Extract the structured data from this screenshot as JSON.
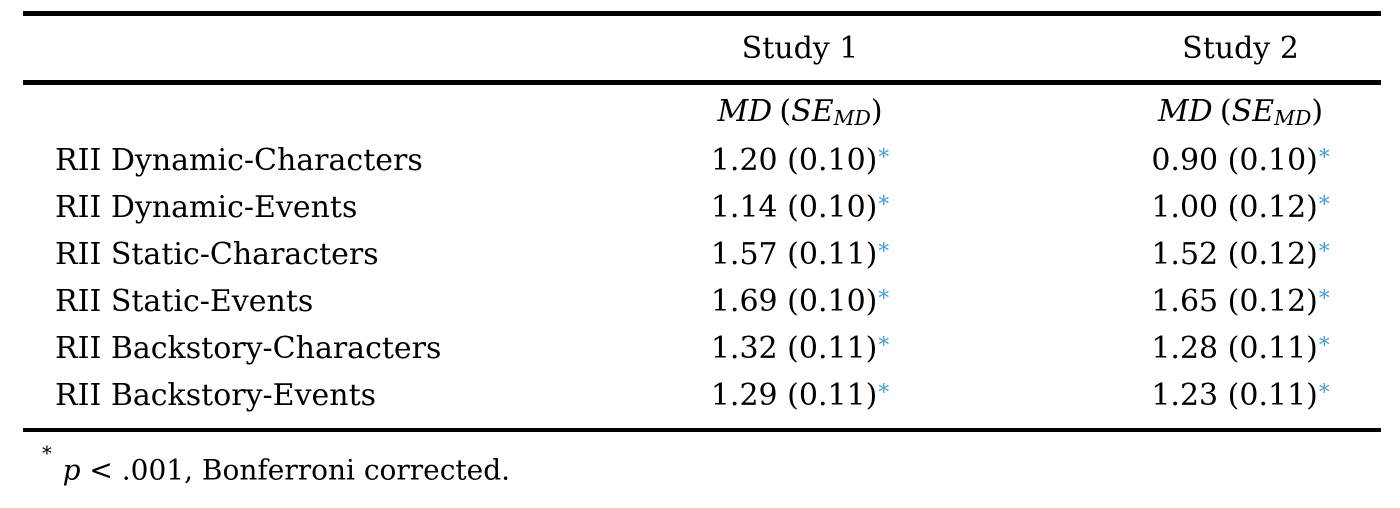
{
  "colors": {
    "background": "#ffffff",
    "text": "#000000",
    "rule": "#000000",
    "sig_asterisk_blue": "#3f9bdc"
  },
  "table": {
    "column_groups": [
      {
        "label": "Study 1"
      },
      {
        "label": "Study 2"
      }
    ],
    "stat_header": {
      "md": "MD",
      "open_paren": "(",
      "se": "SE",
      "se_sub": "MD",
      "close_paren": ")"
    },
    "rows": [
      {
        "label": "RII Dynamic-Characters",
        "study1": "1.20 (0.10)",
        "study1_sig": "*",
        "study2": "0.90 (0.10)",
        "study2_sig": "*"
      },
      {
        "label": "RII Dynamic-Events",
        "study1": "1.14 (0.10)",
        "study1_sig": "*",
        "study2": "1.00 (0.12)",
        "study2_sig": "*"
      },
      {
        "label": "RII Static-Characters",
        "study1": "1.57 (0.11)",
        "study1_sig": "*",
        "study2": "1.52 (0.12)",
        "study2_sig": "*"
      },
      {
        "label": "RII Static-Events",
        "study1": "1.69 (0.10)",
        "study1_sig": "*",
        "study2": "1.65 (0.12)",
        "study2_sig": "*"
      },
      {
        "label": "RII Backstory-Characters",
        "study1": "1.32 (0.11)",
        "study1_sig": "*",
        "study2": "1.28 (0.11)",
        "study2_sig": "*"
      },
      {
        "label": "RII Backstory-Events",
        "study1": "1.29 (0.11)",
        "study1_sig": "*",
        "study2": "1.23 (0.11)",
        "study2_sig": "*"
      }
    ],
    "footnote": {
      "marker": "*",
      "p_var": "p",
      "text": "< .001, Bonferroni corrected."
    }
  }
}
